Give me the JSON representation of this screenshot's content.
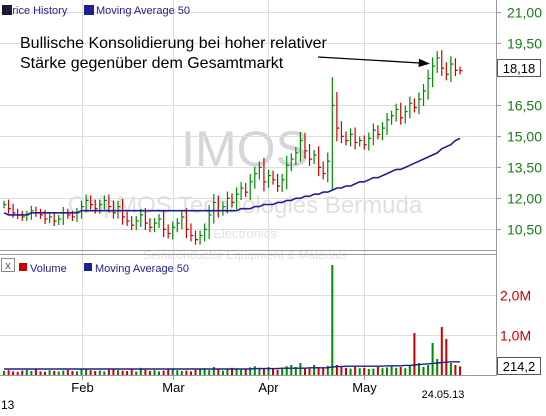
{
  "watermark": {
    "ticker": "IMOS",
    "company": "ChipMOS Technologies Bermuda",
    "sector": "Electronics",
    "industry": "Semiconductor Equipment & Materials"
  },
  "annotation": {
    "line1": "Bullische Konsolidierung bei hoher relativer",
    "line2": "Stärke gegenüber dem Gesamtmarkt"
  },
  "legend_price": {
    "series1": "Price History",
    "series2": "Moving Average 50",
    "color1": "#1a1a1a",
    "color2": "#1f1f8f"
  },
  "legend_volume": {
    "close_symbol": "x",
    "series1": "Volume",
    "series2": "Moving Average 50",
    "color1": "#cc0000",
    "color2": "#1f1f8f"
  },
  "price_labels": [
    "21,00",
    "19,50",
    "16,50",
    "15,00",
    "13,50",
    "12,00",
    "10,50"
  ],
  "current_price_label": "18,18",
  "volume_labels": [
    "2,0M",
    "1,0M"
  ],
  "current_volume_label": "214,2",
  "x_labels": [
    "Feb",
    "Mar",
    "Apr",
    "May"
  ],
  "date_label": "24.05.13",
  "year_label": "13",
  "colors": {
    "up": "#008800",
    "down": "#cc0000",
    "ma": "#1f1f8f",
    "grid": "#dddddd"
  },
  "chart_data": [
    {
      "type": "candlestick",
      "panel": "price",
      "ylim": [
        9.5,
        21.6
      ],
      "ticks": [
        21.0,
        19.5,
        16.5,
        15.0,
        13.5,
        12.0,
        10.5
      ],
      "last_price": 18.18,
      "x_ticks": [
        {
          "label": "Feb",
          "index": 17
        },
        {
          "label": "Mar",
          "index": 37
        },
        {
          "label": "Apr",
          "index": 58
        },
        {
          "label": "May",
          "index": 79
        }
      ],
      "closes": [
        11.7,
        11.5,
        11.3,
        11.2,
        11.1,
        11.2,
        11.4,
        11.3,
        11.2,
        11.0,
        11.1,
        10.9,
        11.0,
        11.3,
        11.2,
        11.1,
        11.3,
        11.6,
        11.9,
        11.7,
        11.5,
        11.7,
        11.9,
        11.6,
        11.3,
        11.6,
        11.1,
        10.9,
        10.7,
        10.9,
        11.2,
        10.8,
        10.6,
        10.8,
        11.0,
        10.5,
        10.3,
        10.6,
        10.8,
        11.1,
        10.5,
        10.2,
        10.0,
        10.2,
        10.5,
        11.2,
        11.8,
        11.4,
        11.6,
        12.0,
        11.8,
        12.2,
        12.5,
        12.3,
        12.8,
        13.2,
        13.5,
        12.8,
        13.1,
        12.9,
        12.6,
        12.9,
        13.6,
        13.9,
        14.2,
        14.8,
        14.3,
        13.9,
        14.1,
        13.5,
        13.2,
        13.8,
        16.5,
        15.4,
        15.0,
        14.8,
        15.1,
        14.7,
        14.8,
        14.6,
        14.9,
        15.3,
        15.1,
        15.4,
        15.8,
        16.0,
        16.3,
        15.9,
        16.2,
        16.6,
        16.4,
        16.8,
        17.2,
        17.8,
        18.4,
        18.8,
        18.3,
        18.0,
        18.5,
        18.2,
        18.18
      ],
      "ma50": [
        11.3,
        11.2,
        11.2,
        11.2,
        11.2,
        11.2,
        11.3,
        11.3,
        11.3,
        11.3,
        11.3,
        11.3,
        11.3,
        11.3,
        11.3,
        11.3,
        11.3,
        11.4,
        11.4,
        11.4,
        11.4,
        11.4,
        11.4,
        11.4,
        11.4,
        11.4,
        11.4,
        11.4,
        11.4,
        11.4,
        11.4,
        11.4,
        11.4,
        11.4,
        11.4,
        11.4,
        11.4,
        11.4,
        11.4,
        11.4,
        11.4,
        11.4,
        11.4,
        11.4,
        11.4,
        11.4,
        11.4,
        11.4,
        11.4,
        11.4,
        11.4,
        11.4,
        11.5,
        11.5,
        11.5,
        11.6,
        11.6,
        11.7,
        11.7,
        11.7,
        11.8,
        11.8,
        11.9,
        11.9,
        12.0,
        12.0,
        12.1,
        12.1,
        12.2,
        12.2,
        12.3,
        12.3,
        12.4,
        12.5,
        12.5,
        12.6,
        12.6,
        12.7,
        12.8,
        12.8,
        12.9,
        13.0,
        13.0,
        13.1,
        13.2,
        13.3,
        13.4,
        13.4,
        13.5,
        13.6,
        13.7,
        13.8,
        13.9,
        14.0,
        14.1,
        14.2,
        14.4,
        14.5,
        14.6,
        14.8,
        14.9
      ]
    },
    {
      "type": "bar",
      "panel": "volume",
      "ylim": [
        0,
        3000000
      ],
      "ticks": [
        2000000,
        1000000
      ],
      "last_volume": 214200,
      "volumes": [
        100000,
        120000,
        90000,
        80000,
        110000,
        130000,
        100000,
        150000,
        90000,
        80000,
        120000,
        100000,
        90000,
        110000,
        130000,
        100000,
        90000,
        160000,
        140000,
        120000,
        100000,
        110000,
        90000,
        130000,
        150000,
        120000,
        110000,
        100000,
        140000,
        90000,
        180000,
        130000,
        100000,
        120000,
        90000,
        110000,
        160000,
        140000,
        120000,
        100000,
        110000,
        90000,
        130000,
        150000,
        170000,
        120000,
        200000,
        160000,
        110000,
        140000,
        180000,
        150000,
        130000,
        160000,
        190000,
        220000,
        180000,
        160000,
        200000,
        150000,
        130000,
        180000,
        220000,
        250000,
        200000,
        300000,
        180000,
        160000,
        250000,
        200000,
        190000,
        230000,
        2750000,
        250000,
        200000,
        180000,
        160000,
        200000,
        170000,
        180000,
        150000,
        160000,
        200000,
        170000,
        190000,
        220000,
        180000,
        200000,
        170000,
        250000,
        1050000,
        300000,
        200000,
        250000,
        800000,
        400000,
        1200000,
        900000,
        300000,
        250000,
        214200
      ],
      "ma50": [
        150000,
        150000,
        150000,
        150000,
        150000,
        150000,
        150000,
        150000,
        150000,
        150000,
        150000,
        150000,
        150000,
        150000,
        150000,
        150000,
        150000,
        150000,
        150000,
        150000,
        150000,
        150000,
        150000,
        150000,
        150000,
        150000,
        150000,
        150000,
        150000,
        150000,
        150000,
        150000,
        150000,
        150000,
        150000,
        150000,
        150000,
        150000,
        150000,
        150000,
        150000,
        150000,
        150000,
        150000,
        150000,
        150000,
        150000,
        150000,
        150000,
        150000,
        150000,
        150000,
        150000,
        150000,
        150000,
        160000,
        160000,
        160000,
        160000,
        160000,
        160000,
        170000,
        170000,
        170000,
        170000,
        170000,
        170000,
        180000,
        180000,
        180000,
        180000,
        180000,
        200000,
        210000,
        210000,
        220000,
        220000,
        220000,
        220000,
        220000,
        220000,
        220000,
        220000,
        220000,
        230000,
        230000,
        230000,
        230000,
        240000,
        240000,
        250000,
        260000,
        270000,
        280000,
        290000,
        300000,
        310000,
        320000,
        330000,
        330000,
        330000
      ]
    }
  ]
}
